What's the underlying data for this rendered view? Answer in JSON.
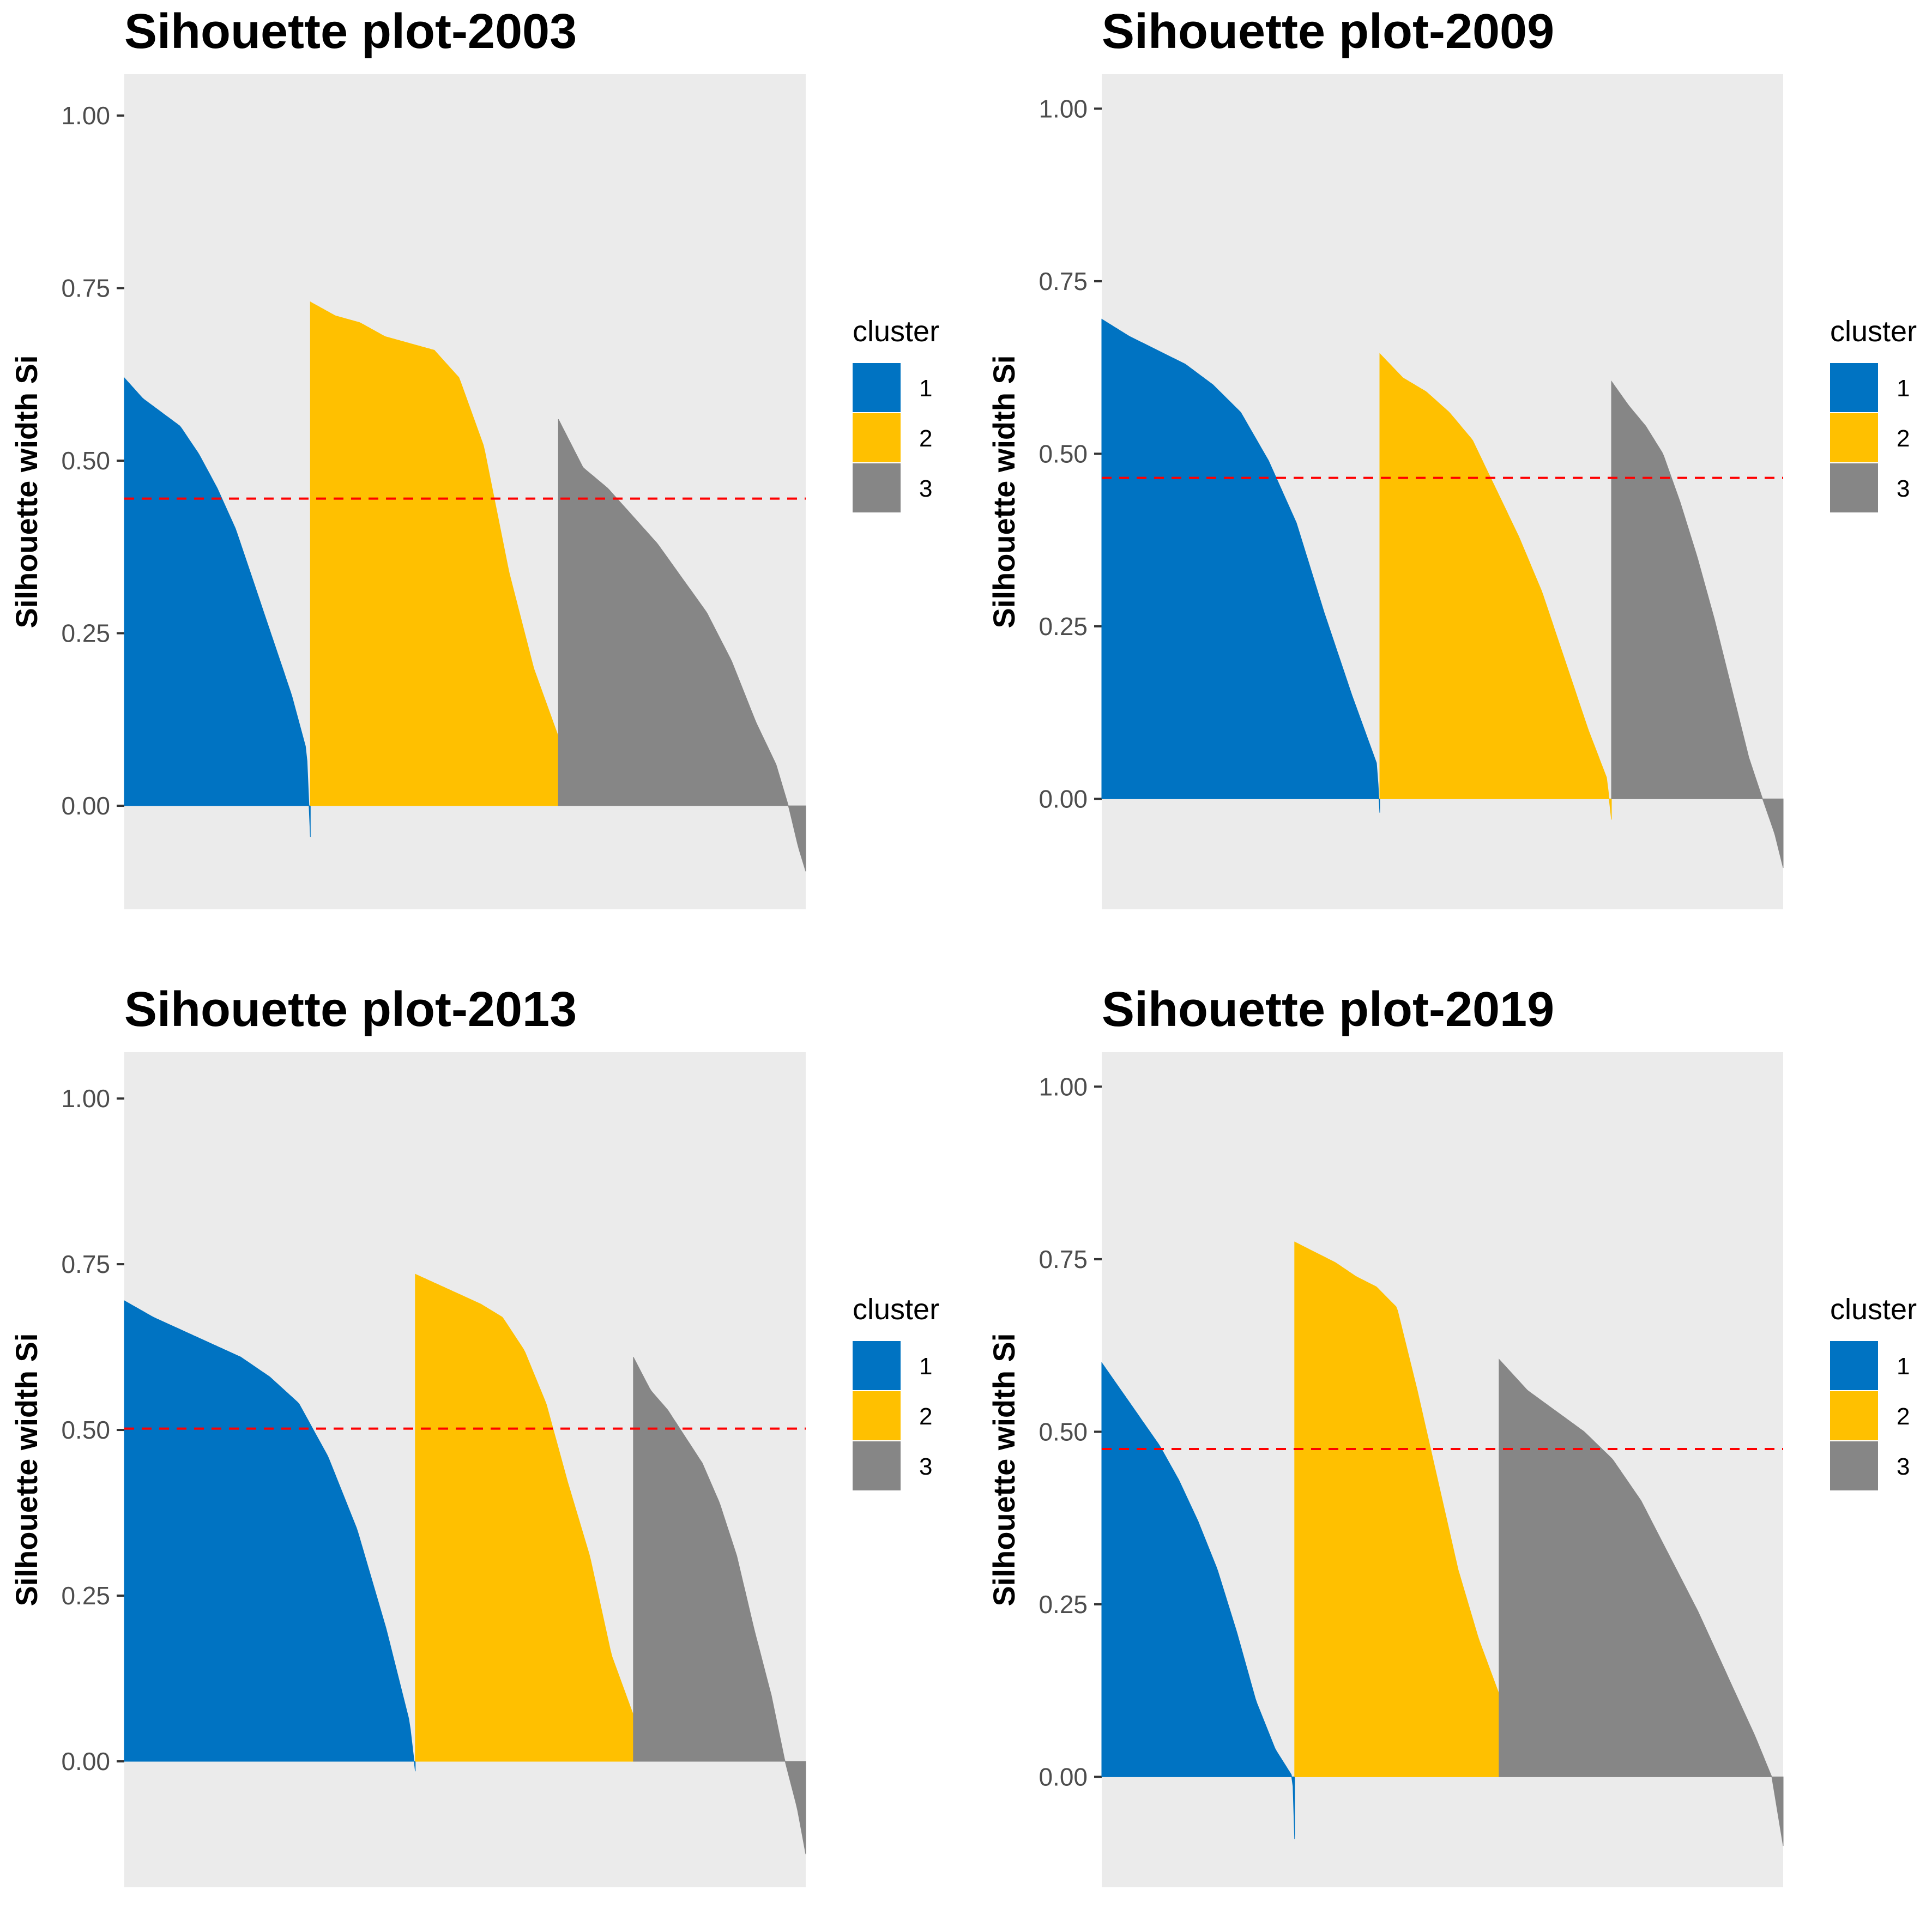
{
  "colors": {
    "cluster_1": "#0073C2",
    "cluster_2": "#FFC000",
    "cluster_3": "#868686",
    "panel_background": "#EBEBEB",
    "mean_line": "#FF0000"
  },
  "chart_data": [
    {
      "type": "area",
      "title": "Sihouette plot-2003",
      "xlabel": "",
      "ylabel": "Silhouette width Si",
      "ylim": [
        -0.15,
        1.06
      ],
      "y_ticks": [
        "0.00",
        "0.25",
        "0.50",
        "0.75",
        "1.00"
      ],
      "y_tick_values": [
        0,
        0.25,
        0.5,
        0.75,
        1.0
      ],
      "grid": false,
      "legend": {
        "title": "cluster",
        "position": "right",
        "entries": [
          "1",
          "2",
          "3"
        ]
      },
      "mean_silhouette": 0.445,
      "series": [
        {
          "name": "1",
          "share": 0.273,
          "profile": [
            [
              0,
              0.62
            ],
            [
              0.1,
              0.59
            ],
            [
              0.2,
              0.57
            ],
            [
              0.3,
              0.55
            ],
            [
              0.4,
              0.51
            ],
            [
              0.5,
              0.46
            ],
            [
              0.6,
              0.4
            ],
            [
              0.7,
              0.32
            ],
            [
              0.8,
              0.24
            ],
            [
              0.9,
              0.16
            ],
            [
              0.98,
              0.08
            ],
            [
              1.0,
              -0.045
            ]
          ]
        },
        {
          "name": "2",
          "share": 0.364,
          "profile": [
            [
              0,
              0.73
            ],
            [
              0.1,
              0.71
            ],
            [
              0.2,
              0.7
            ],
            [
              0.3,
              0.68
            ],
            [
              0.4,
              0.67
            ],
            [
              0.5,
              0.66
            ],
            [
              0.6,
              0.62
            ],
            [
              0.7,
              0.52
            ],
            [
              0.8,
              0.34
            ],
            [
              0.9,
              0.2
            ],
            [
              1.0,
              0.1
            ]
          ]
        },
        {
          "name": "3",
          "share": 0.363,
          "profile": [
            [
              0,
              0.56
            ],
            [
              0.1,
              0.49
            ],
            [
              0.2,
              0.46
            ],
            [
              0.3,
              0.42
            ],
            [
              0.4,
              0.38
            ],
            [
              0.5,
              0.33
            ],
            [
              0.6,
              0.28
            ],
            [
              0.7,
              0.21
            ],
            [
              0.8,
              0.12
            ],
            [
              0.88,
              0.06
            ],
            [
              0.93,
              0.0
            ],
            [
              0.97,
              -0.06
            ],
            [
              1.0,
              -0.095
            ]
          ]
        }
      ]
    },
    {
      "type": "area",
      "title": "Sihouette plot-2009",
      "xlabel": "",
      "ylabel": "Silhouette width Si",
      "ylim": [
        -0.16,
        1.05
      ],
      "y_ticks": [
        "0.00",
        "0.25",
        "0.50",
        "0.75",
        "1.00"
      ],
      "y_tick_values": [
        0,
        0.25,
        0.5,
        0.75,
        1.0
      ],
      "grid": false,
      "legend": {
        "title": "cluster",
        "position": "right",
        "entries": [
          "1",
          "2",
          "3"
        ]
      },
      "mean_silhouette": 0.465,
      "series": [
        {
          "name": "1",
          "share": 0.408,
          "profile": [
            [
              0,
              0.695
            ],
            [
              0.1,
              0.67
            ],
            [
              0.2,
              0.65
            ],
            [
              0.3,
              0.63
            ],
            [
              0.4,
              0.6
            ],
            [
              0.5,
              0.56
            ],
            [
              0.6,
              0.49
            ],
            [
              0.7,
              0.4
            ],
            [
              0.8,
              0.27
            ],
            [
              0.9,
              0.15
            ],
            [
              0.99,
              0.05
            ],
            [
              1.0,
              -0.02
            ]
          ]
        },
        {
          "name": "2",
          "share": 0.34,
          "profile": [
            [
              0,
              0.645
            ],
            [
              0.1,
              0.61
            ],
            [
              0.2,
              0.59
            ],
            [
              0.3,
              0.56
            ],
            [
              0.4,
              0.52
            ],
            [
              0.5,
              0.45
            ],
            [
              0.6,
              0.38
            ],
            [
              0.7,
              0.3
            ],
            [
              0.8,
              0.2
            ],
            [
              0.9,
              0.1
            ],
            [
              0.98,
              0.03
            ],
            [
              1.0,
              -0.03
            ]
          ]
        },
        {
          "name": "3",
          "share": 0.252,
          "profile": [
            [
              0,
              0.605
            ],
            [
              0.1,
              0.57
            ],
            [
              0.2,
              0.54
            ],
            [
              0.3,
              0.5
            ],
            [
              0.4,
              0.43
            ],
            [
              0.5,
              0.35
            ],
            [
              0.6,
              0.26
            ],
            [
              0.7,
              0.16
            ],
            [
              0.8,
              0.06
            ],
            [
              0.88,
              0.0
            ],
            [
              0.95,
              -0.05
            ],
            [
              1.0,
              -0.1
            ]
          ]
        }
      ]
    },
    {
      "type": "area",
      "title": "Sihouette plot-2013",
      "xlabel": "",
      "ylabel": "Silhouette width Si",
      "ylim": [
        -0.19,
        1.07
      ],
      "y_ticks": [
        "0.00",
        "0.25",
        "0.50",
        "0.75",
        "1.00"
      ],
      "y_tick_values": [
        0,
        0.25,
        0.5,
        0.75,
        1.0
      ],
      "grid": false,
      "legend": {
        "title": "cluster",
        "position": "right",
        "entries": [
          "1",
          "2",
          "3"
        ]
      },
      "mean_silhouette": 0.502,
      "series": [
        {
          "name": "1",
          "share": 0.427,
          "profile": [
            [
              0,
              0.695
            ],
            [
              0.1,
              0.67
            ],
            [
              0.2,
              0.65
            ],
            [
              0.3,
              0.63
            ],
            [
              0.4,
              0.61
            ],
            [
              0.5,
              0.58
            ],
            [
              0.6,
              0.54
            ],
            [
              0.7,
              0.46
            ],
            [
              0.8,
              0.35
            ],
            [
              0.9,
              0.2
            ],
            [
              0.98,
              0.06
            ],
            [
              1.0,
              -0.015
            ]
          ]
        },
        {
          "name": "2",
          "share": 0.32,
          "profile": [
            [
              0,
              0.735
            ],
            [
              0.1,
              0.72
            ],
            [
              0.2,
              0.705
            ],
            [
              0.3,
              0.69
            ],
            [
              0.4,
              0.67
            ],
            [
              0.5,
              0.62
            ],
            [
              0.6,
              0.54
            ],
            [
              0.7,
              0.42
            ],
            [
              0.8,
              0.31
            ],
            [
              0.9,
              0.16
            ],
            [
              1.0,
              0.07
            ]
          ]
        },
        {
          "name": "3",
          "share": 0.253,
          "profile": [
            [
              0,
              0.61
            ],
            [
              0.1,
              0.56
            ],
            [
              0.2,
              0.53
            ],
            [
              0.3,
              0.49
            ],
            [
              0.4,
              0.45
            ],
            [
              0.5,
              0.39
            ],
            [
              0.6,
              0.31
            ],
            [
              0.7,
              0.2
            ],
            [
              0.8,
              0.1
            ],
            [
              0.88,
              0.0
            ],
            [
              0.95,
              -0.07
            ],
            [
              1.0,
              -0.14
            ]
          ]
        }
      ]
    },
    {
      "type": "area",
      "title": "Sihouette plot-2019",
      "xlabel": "",
      "ylabel": "Silhouette width Si",
      "ylim": [
        -0.16,
        1.05
      ],
      "y_ticks": [
        "0.00",
        "0.25",
        "0.50",
        "0.75",
        "1.00"
      ],
      "y_tick_values": [
        0,
        0.25,
        0.5,
        0.75,
        1.0
      ],
      "grid": false,
      "legend": {
        "title": "cluster",
        "position": "right",
        "entries": [
          "1",
          "2",
          "3"
        ]
      },
      "mean_silhouette": 0.475,
      "series": [
        {
          "name": "1",
          "share": 0.283,
          "profile": [
            [
              0,
              0.6
            ],
            [
              0.1,
              0.56
            ],
            [
              0.2,
              0.52
            ],
            [
              0.3,
              0.48
            ],
            [
              0.4,
              0.43
            ],
            [
              0.5,
              0.37
            ],
            [
              0.6,
              0.3
            ],
            [
              0.7,
              0.21
            ],
            [
              0.8,
              0.11
            ],
            [
              0.9,
              0.04
            ],
            [
              0.99,
              0.0
            ],
            [
              1.0,
              -0.09
            ]
          ]
        },
        {
          "name": "2",
          "share": 0.3,
          "profile": [
            [
              0,
              0.775
            ],
            [
              0.1,
              0.76
            ],
            [
              0.2,
              0.745
            ],
            [
              0.3,
              0.725
            ],
            [
              0.4,
              0.71
            ],
            [
              0.5,
              0.68
            ],
            [
              0.6,
              0.56
            ],
            [
              0.7,
              0.43
            ],
            [
              0.8,
              0.3
            ],
            [
              0.9,
              0.2
            ],
            [
              1.0,
              0.12
            ]
          ]
        },
        {
          "name": "3",
          "share": 0.417,
          "profile": [
            [
              0,
              0.605
            ],
            [
              0.1,
              0.56
            ],
            [
              0.2,
              0.53
            ],
            [
              0.3,
              0.5
            ],
            [
              0.4,
              0.46
            ],
            [
              0.5,
              0.4
            ],
            [
              0.6,
              0.32
            ],
            [
              0.7,
              0.24
            ],
            [
              0.8,
              0.15
            ],
            [
              0.9,
              0.06
            ],
            [
              0.96,
              0.0
            ],
            [
              1.0,
              -0.1
            ]
          ]
        }
      ]
    }
  ]
}
